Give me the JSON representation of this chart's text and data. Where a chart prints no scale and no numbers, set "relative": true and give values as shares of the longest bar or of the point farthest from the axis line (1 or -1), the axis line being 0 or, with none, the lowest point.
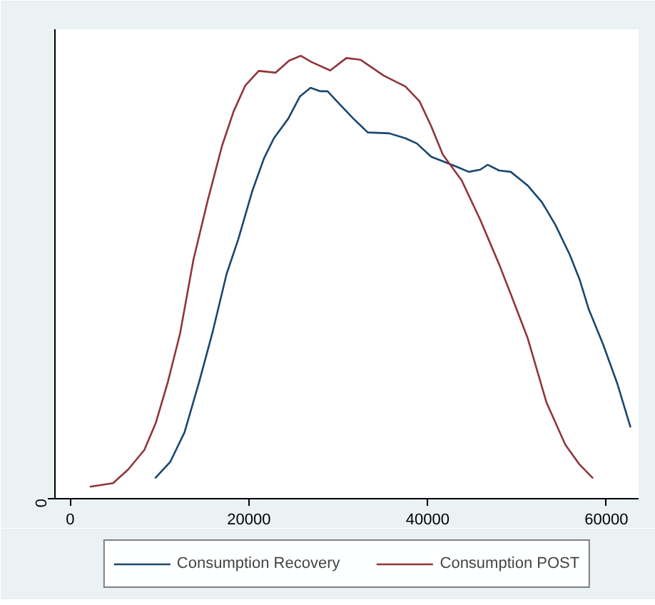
{
  "chart_data": {
    "type": "line",
    "relative": true,
    "xlim": [
      -1700,
      63600
    ],
    "xticks": [
      0,
      20000,
      40000,
      60000
    ],
    "annotations": [
      "0"
    ],
    "legend": "bottom",
    "series": [
      {
        "name": "Consumption Recovery",
        "color": "#1a476f",
        "x": [
          9500,
          11200,
          12800,
          14400,
          15900,
          17500,
          18800,
          20400,
          21700,
          22800,
          24400,
          25700,
          26900,
          28000,
          28800,
          30100,
          31700,
          33300,
          35700,
          37500,
          38800,
          40400,
          42200,
          43300,
          44600,
          45900,
          46700,
          48000,
          49300,
          51200,
          52800,
          54300,
          55900,
          57000,
          58000,
          59600,
          61200,
          62700
        ],
        "values": [
          0.046,
          0.083,
          0.15,
          0.261,
          0.373,
          0.507,
          0.585,
          0.696,
          0.769,
          0.814,
          0.858,
          0.908,
          0.928,
          0.92,
          0.92,
          0.892,
          0.858,
          0.827,
          0.825,
          0.814,
          0.802,
          0.772,
          0.758,
          0.749,
          0.738,
          0.743,
          0.754,
          0.741,
          0.738,
          0.707,
          0.669,
          0.618,
          0.551,
          0.495,
          0.429,
          0.35,
          0.261,
          0.161
        ]
      },
      {
        "name": "Consumption POST",
        "color": "#90353b",
        "x": [
          2200,
          4800,
          6500,
          8300,
          9600,
          10900,
          12300,
          13800,
          15400,
          17000,
          18300,
          19600,
          21100,
          23000,
          24500,
          25800,
          27000,
          29100,
          30900,
          32500,
          35100,
          37500,
          39100,
          40400,
          41700,
          43800,
          45900,
          48000,
          49300,
          51200,
          53300,
          55400,
          57000,
          58500
        ],
        "values": [
          0.027,
          0.035,
          0.066,
          0.11,
          0.172,
          0.261,
          0.373,
          0.54,
          0.674,
          0.797,
          0.875,
          0.933,
          0.966,
          0.962,
          0.989,
          1,
          0.986,
          0.967,
          0.995,
          0.991,
          0.955,
          0.931,
          0.897,
          0.841,
          0.777,
          0.719,
          0.629,
          0.529,
          0.462,
          0.362,
          0.217,
          0.122,
          0.077,
          0.046
        ]
      }
    ]
  }
}
